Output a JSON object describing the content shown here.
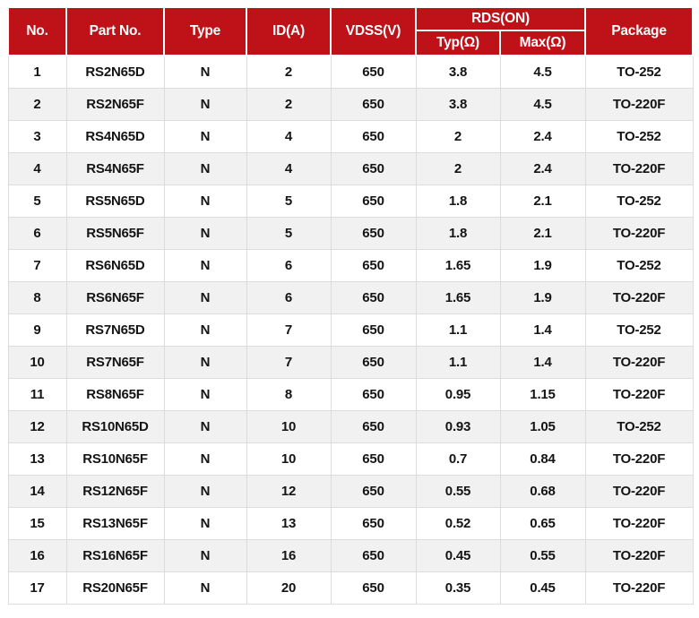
{
  "colors": {
    "header_bg": "#BE1118",
    "header_text": "#ffffff",
    "row_alt_bg": "#F2F1F1",
    "row_bg": "#ffffff",
    "border": "#DCDCDC",
    "body_text": "#141414"
  },
  "table": {
    "header": {
      "no": "No.",
      "part_no": "Part No.",
      "type": "Type",
      "id": "ID(A)",
      "vdss": "VDSS(V)",
      "rds_on": "RDS(ON)",
      "typ": "Typ(Ω)",
      "max": "Max(Ω)",
      "package": "Package"
    },
    "column_keys": [
      "no",
      "part_no",
      "type",
      "id",
      "vdss",
      "typ",
      "max",
      "package"
    ],
    "rows": [
      [
        "1",
        "RS2N65D",
        "N",
        "2",
        "650",
        "3.8",
        "4.5",
        "TO-252"
      ],
      [
        "2",
        "RS2N65F",
        "N",
        "2",
        "650",
        "3.8",
        "4.5",
        "TO-220F"
      ],
      [
        "3",
        "RS4N65D",
        "N",
        "4",
        "650",
        "2",
        "2.4",
        "TO-252"
      ],
      [
        "4",
        "RS4N65F",
        "N",
        "4",
        "650",
        "2",
        "2.4",
        "TO-220F"
      ],
      [
        "5",
        "RS5N65D",
        "N",
        "5",
        "650",
        "1.8",
        "2.1",
        "TO-252"
      ],
      [
        "6",
        "RS5N65F",
        "N",
        "5",
        "650",
        "1.8",
        "2.1",
        "TO-220F"
      ],
      [
        "7",
        "RS6N65D",
        "N",
        "6",
        "650",
        "1.65",
        "1.9",
        "TO-252"
      ],
      [
        "8",
        "RS6N65F",
        "N",
        "6",
        "650",
        "1.65",
        "1.9",
        "TO-220F"
      ],
      [
        "9",
        "RS7N65D",
        "N",
        "7",
        "650",
        "1.1",
        "1.4",
        "TO-252"
      ],
      [
        "10",
        "RS7N65F",
        "N",
        "7",
        "650",
        "1.1",
        "1.4",
        "TO-220F"
      ],
      [
        "11",
        "RS8N65F",
        "N",
        "8",
        "650",
        "0.95",
        "1.15",
        "TO-220F"
      ],
      [
        "12",
        "RS10N65D",
        "N",
        "10",
        "650",
        "0.93",
        "1.05",
        "TO-252"
      ],
      [
        "13",
        "RS10N65F",
        "N",
        "10",
        "650",
        "0.7",
        "0.84",
        "TO-220F"
      ],
      [
        "14",
        "RS12N65F",
        "N",
        "12",
        "650",
        "0.55",
        "0.68",
        "TO-220F"
      ],
      [
        "15",
        "RS13N65F",
        "N",
        "13",
        "650",
        "0.52",
        "0.65",
        "TO-220F"
      ],
      [
        "16",
        "RS16N65F",
        "N",
        "16",
        "650",
        "0.45",
        "0.55",
        "TO-220F"
      ],
      [
        "17",
        "RS20N65F",
        "N",
        "20",
        "650",
        "0.35",
        "0.45",
        "TO-220F"
      ]
    ]
  }
}
